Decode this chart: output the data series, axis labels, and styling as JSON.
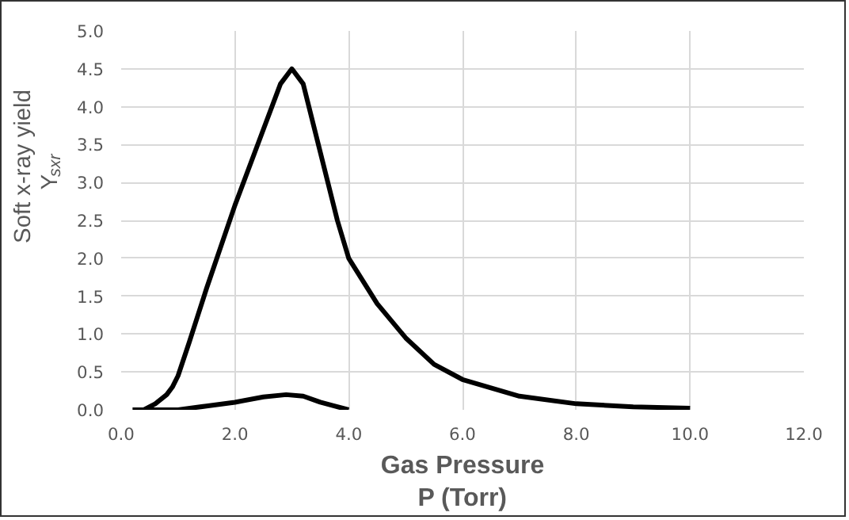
{
  "chart_data": {
    "type": "line",
    "xlabel": "Gas Pressure\nP (Torr)",
    "ylabel": "Soft x-ray yield\nY$_{sxr}$",
    "xlim": [
      0,
      12
    ],
    "ylim": [
      0,
      5
    ],
    "xticks": [
      {
        "value": 0,
        "label": "0.0"
      },
      {
        "value": 2,
        "label": "2.0"
      },
      {
        "value": 4,
        "label": "4.0"
      },
      {
        "value": 6,
        "label": "6.0"
      },
      {
        "value": 8,
        "label": "8.0"
      },
      {
        "value": 10,
        "label": "10.0"
      },
      {
        "value": 12,
        "label": "12.0"
      }
    ],
    "yticks": [
      {
        "value": 0,
        "label": "0.0"
      },
      {
        "value": 0.5,
        "label": "0.5"
      },
      {
        "value": 1,
        "label": "1.0"
      },
      {
        "value": 1.5,
        "label": "1.5"
      },
      {
        "value": 2,
        "label": "2.0"
      },
      {
        "value": 2.5,
        "label": "2.5"
      },
      {
        "value": 3,
        "label": "3.0"
      },
      {
        "value": 3.5,
        "label": "3.5"
      },
      {
        "value": 4,
        "label": "4.0"
      },
      {
        "value": 4.5,
        "label": "4.5"
      },
      {
        "value": 5,
        "label": "5.0"
      }
    ],
    "grid": true,
    "marker": "none",
    "line_style": "solid",
    "series": [
      {
        "color": "#000000",
        "x": [
          0.4,
          0.6,
          0.8,
          0.9,
          1.0,
          1.2,
          1.5,
          2.0,
          2.5,
          2.8,
          3.0,
          3.2,
          3.5,
          3.8,
          4.0,
          4.5,
          5.0,
          5.5,
          6.0,
          7.0,
          8.0,
          9.0,
          10.0
        ],
        "values": [
          0.0,
          0.08,
          0.2,
          0.3,
          0.45,
          0.9,
          1.6,
          2.7,
          3.7,
          4.3,
          4.5,
          4.3,
          3.4,
          2.5,
          2.0,
          1.4,
          0.95,
          0.6,
          0.4,
          0.18,
          0.08,
          0.04,
          0.02
        ]
      },
      {
        "color": "#000000",
        "x": [
          0.2,
          1.0,
          1.5,
          2.0,
          2.5,
          2.9,
          3.2,
          3.5,
          4.0
        ],
        "values": [
          0.0,
          0.0,
          0.05,
          0.1,
          0.17,
          0.2,
          0.18,
          0.1,
          0.0
        ]
      }
    ]
  }
}
